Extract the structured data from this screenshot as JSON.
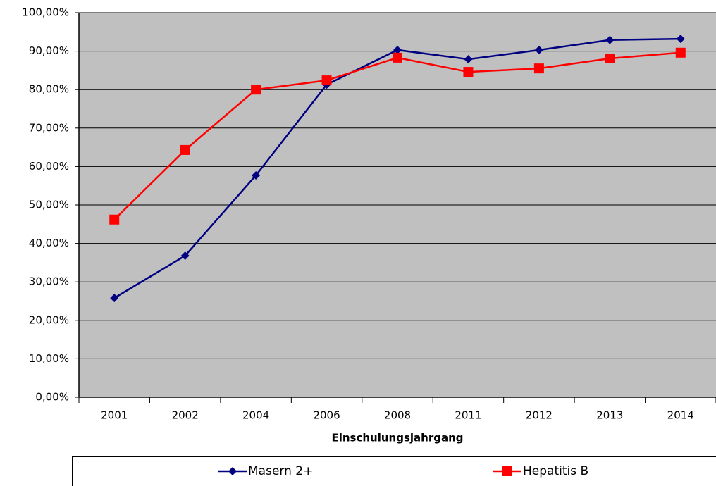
{
  "chart_data": {
    "type": "line",
    "x_label": "Einschulungsjahrgang",
    "categories": [
      "2001",
      "2002",
      "2004",
      "2006",
      "2008",
      "2011",
      "2012",
      "2013",
      "2014"
    ],
    "series": [
      {
        "name": "Masern 2+",
        "color": "#000080",
        "marker": "diamond",
        "values": [
          25.8,
          36.8,
          57.7,
          81.3,
          90.3,
          87.9,
          90.3,
          92.9,
          93.2
        ]
      },
      {
        "name": "Hepatitis B",
        "color": "#ff0000",
        "marker": "square",
        "values": [
          46.2,
          64.3,
          80.0,
          82.4,
          88.3,
          84.6,
          85.5,
          88.1,
          89.6
        ]
      }
    ],
    "ylim": [
      0,
      100
    ],
    "yticks": [
      {
        "value": 0,
        "label": "0,00%"
      },
      {
        "value": 10,
        "label": "10,00%"
      },
      {
        "value": 20,
        "label": "20,00%"
      },
      {
        "value": 30,
        "label": "30,00%"
      },
      {
        "value": 40,
        "label": "40,00%"
      },
      {
        "value": 50,
        "label": "50,00%"
      },
      {
        "value": 60,
        "label": "60,00%"
      },
      {
        "value": 70,
        "label": "70,00%"
      },
      {
        "value": 80,
        "label": "80,00%"
      },
      {
        "value": 90,
        "label": "90,00%"
      },
      {
        "value": 100,
        "label": "100,00%"
      }
    ],
    "grid": true,
    "legend": "bottom"
  }
}
